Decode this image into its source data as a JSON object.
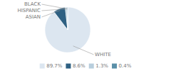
{
  "chart_data": {
    "type": "pie",
    "categories": [
      "WHITE",
      "ASIAN",
      "HISPANIC",
      "BLACK"
    ],
    "values": [
      89.7,
      8.6,
      1.3,
      0.4
    ],
    "colors": [
      "#dce6f0",
      "#2e6082",
      "#b8cedd",
      "#5a8fa8"
    ],
    "value_labels": [
      "89.7%",
      "8.6%",
      "1.3%",
      "0.4%"
    ],
    "legend": "bottom"
  }
}
